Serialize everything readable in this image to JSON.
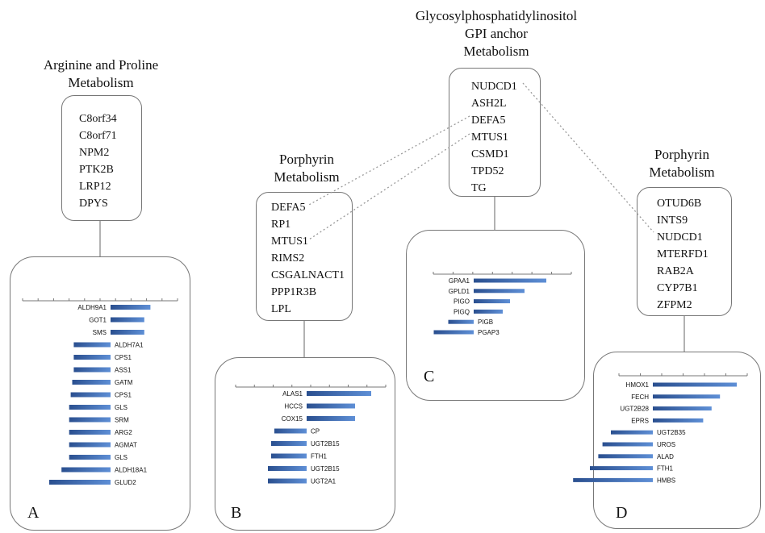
{
  "panels": {
    "A": {
      "title": [
        "Arginine and Proline",
        "Metabolism"
      ],
      "genes": [
        "C8orf34",
        "C8orf71",
        "NPM2",
        "PTK2B",
        "LRP12",
        "DPYS"
      ],
      "letter": "A"
    },
    "B": {
      "title": [
        "Porphyrin",
        "Metabolism"
      ],
      "genes": [
        "DEFA5",
        "RP1",
        "MTUS1",
        "RIMS2",
        "CSGALNACT1",
        "PPP1R3B",
        "LPL"
      ],
      "letter": "B"
    },
    "C": {
      "title": [
        "Glycosylphosphatidylinositol",
        "GPI anchor",
        "Metabolism"
      ],
      "genes": [
        "NUDCD1",
        "ASH2L",
        "DEFA5",
        "MTUS1",
        "CSMD1",
        "TPD52",
        "TG"
      ],
      "letter": "C"
    },
    "D": {
      "title": [
        "Porphyrin",
        "Metabolism"
      ],
      "genes": [
        "OTUD6B",
        "INTS9",
        "NUDCD1",
        "MTERFD1",
        "RAB2A",
        "CYP7B1",
        "ZFPM2"
      ],
      "letter": "D"
    }
  },
  "connections": [
    {
      "from": "C.DEFA5",
      "to": "B.DEFA5"
    },
    {
      "from": "C.MTUS1",
      "to": "B.MTUS1"
    },
    {
      "from": "C.NUDCD1",
      "to": "D.NUDCD1"
    }
  ],
  "chart_data": [
    {
      "panel": "A",
      "type": "bar",
      "orientation": "horizontal-diverging",
      "categories": [
        "ALDH9A1",
        "GOT1",
        "SMS",
        "ALDH7A1",
        "CPS1",
        "ASS1",
        "GATM",
        "CPS1",
        "GLS",
        "SRM",
        "ARG2",
        "AGMAT",
        "GLS",
        "ALDH18A1",
        "GLUD2"
      ],
      "values": [
        1.3,
        1.1,
        1.1,
        -1.2,
        -1.2,
        -1.2,
        -1.25,
        -1.3,
        -1.35,
        -1.35,
        -1.35,
        -1.35,
        -1.35,
        -1.6,
        -2.0
      ]
    },
    {
      "panel": "B",
      "type": "bar",
      "orientation": "horizontal-diverging",
      "categories": [
        "ALAS1",
        "HCCS",
        "COX15",
        "CP",
        "UGT2B15",
        "FTH1",
        "UGT2B15",
        "UGT2A1"
      ],
      "values": [
        2.0,
        1.5,
        1.5,
        -1.0,
        -1.1,
        -1.1,
        -1.2,
        -1.2
      ]
    },
    {
      "panel": "C",
      "type": "bar",
      "orientation": "horizontal-diverging",
      "categories": [
        "GPAA1",
        "GPLD1",
        "PIGO",
        "PIGQ",
        "PIGB",
        "PGAP3"
      ],
      "values": [
        2.0,
        1.4,
        1.0,
        0.8,
        -0.7,
        -1.1
      ]
    },
    {
      "panel": "D",
      "type": "bar",
      "orientation": "horizontal-diverging",
      "categories": [
        "HMOX1",
        "FECH",
        "UGT2B28",
        "EPRS",
        "UGT2B35",
        "UROS",
        "ALAD",
        "FTH1",
        "HMBS"
      ],
      "values": [
        2.0,
        1.6,
        1.4,
        1.2,
        -1.0,
        -1.2,
        -1.3,
        -1.5,
        -1.9
      ]
    }
  ]
}
